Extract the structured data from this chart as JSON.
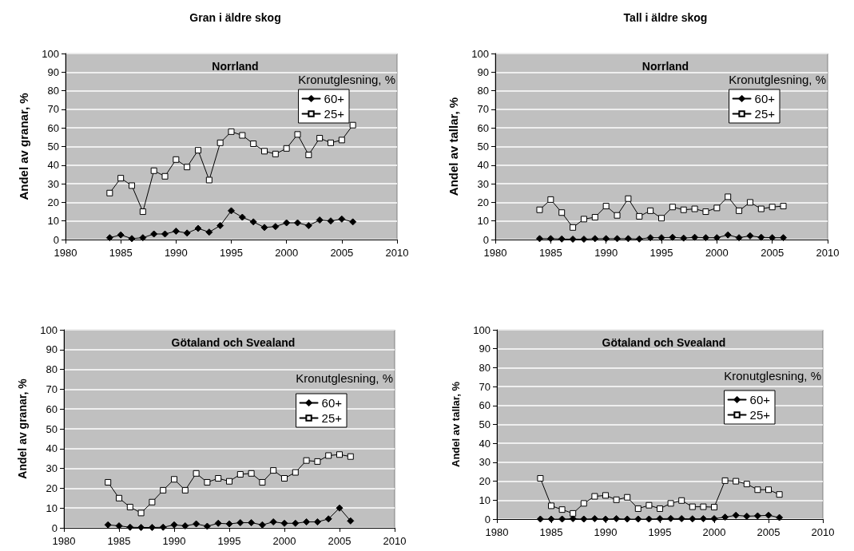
{
  "chart_data": [
    {
      "type": "line",
      "title": "Gran i äldre skog",
      "subtitle": "Norrland",
      "ylabel": "Andel av granar, %",
      "legend_title": "Kronutglesning, %",
      "legend": "top right",
      "grid": "y",
      "xlim": [
        1980,
        2010
      ],
      "xticks": [
        1980,
        1985,
        1990,
        1995,
        2000,
        2005,
        2010
      ],
      "ylim": [
        0,
        100
      ],
      "yticks": [
        0,
        10,
        20,
        30,
        40,
        50,
        60,
        70,
        80,
        90,
        100
      ],
      "x": [
        1984,
        1985,
        1986,
        1987,
        1988,
        1989,
        1990,
        1991,
        1992,
        1993,
        1994,
        1995,
        1996,
        1997,
        1998,
        1999,
        2000,
        2001,
        2002,
        2003,
        2004,
        2005,
        2006
      ],
      "series": [
        {
          "name": "60+",
          "color": "#000000",
          "marker": "diamond",
          "values": [
            1,
            2.5,
            0.5,
            1,
            3,
            3,
            4.5,
            3.5,
            6,
            4,
            7.5,
            15.5,
            12,
            9.5,
            6.5,
            7,
            9,
            9,
            7.5,
            10.5,
            10,
            11,
            9.5
          ]
        },
        {
          "name": "25+",
          "color": "#000000",
          "marker": "square",
          "values": [
            25,
            33,
            29,
            15,
            37,
            34,
            43,
            39,
            48,
            32,
            52,
            58,
            56,
            51.5,
            47.5,
            46,
            49,
            56.5,
            45.5,
            54.5,
            52,
            53.5,
            61.5
          ]
        }
      ]
    },
    {
      "type": "line",
      "title": "Tall i äldre skog",
      "subtitle": "Norrland",
      "ylabel": "Andel av tallar, %",
      "legend_title": "Kronutglesning, %",
      "legend": "top right",
      "grid": "y",
      "xlim": [
        1980,
        2010
      ],
      "xticks": [
        1980,
        1985,
        1990,
        1995,
        2000,
        2005,
        2010
      ],
      "ylim": [
        0,
        100
      ],
      "yticks": [
        0,
        10,
        20,
        30,
        40,
        50,
        60,
        70,
        80,
        90,
        100
      ],
      "x": [
        1984,
        1985,
        1986,
        1987,
        1988,
        1989,
        1990,
        1991,
        1992,
        1993,
        1994,
        1995,
        1996,
        1997,
        1998,
        1999,
        2000,
        2001,
        2002,
        2003,
        2004,
        2005,
        2006
      ],
      "series": [
        {
          "name": "60+",
          "color": "#000000",
          "marker": "diamond",
          "values": [
            0.5,
            0.5,
            0.3,
            0.2,
            0.2,
            0.5,
            0.5,
            0.5,
            0.5,
            0.3,
            1,
            1,
            1.2,
            0.8,
            1.2,
            1,
            1,
            2.5,
            1,
            2,
            1.2,
            1,
            1
          ]
        },
        {
          "name": "25+",
          "color": "#000000",
          "marker": "square",
          "values": [
            16,
            21.5,
            14.5,
            6.5,
            11,
            12,
            18,
            13,
            22,
            12.5,
            15.5,
            11.5,
            17.5,
            16,
            16.5,
            15,
            17,
            23,
            15.5,
            20,
            16.5,
            17.5,
            18
          ]
        }
      ]
    },
    {
      "type": "line",
      "title": "Götaland och Svealand",
      "ylabel": "Andel av granar, %",
      "legend_title": "Kronutglesning, %",
      "legend": "top right",
      "grid": "y",
      "xlim": [
        1980,
        2010
      ],
      "xticks": [
        1980,
        1985,
        1990,
        1995,
        2000,
        2005,
        2010
      ],
      "ylim": [
        0,
        100
      ],
      "yticks": [
        0,
        10,
        20,
        30,
        40,
        50,
        60,
        70,
        80,
        90,
        100
      ],
      "x": [
        1984,
        1985,
        1986,
        1987,
        1988,
        1989,
        1990,
        1991,
        1992,
        1993,
        1994,
        1995,
        1996,
        1997,
        1998,
        1999,
        2000,
        2001,
        2002,
        2003,
        2004,
        2005,
        2006
      ],
      "series": [
        {
          "name": "60+",
          "color": "#000000",
          "marker": "diamond",
          "values": [
            1.5,
            1,
            0.3,
            0.2,
            0.2,
            0.3,
            1.5,
            1,
            2,
            0.8,
            2.3,
            2,
            2.6,
            2.6,
            1.5,
            3,
            2.3,
            2.3,
            3,
            3,
            4.5,
            10,
            3.5
          ]
        },
        {
          "name": "25+",
          "color": "#000000",
          "marker": "square",
          "values": [
            23,
            15,
            10.5,
            7.5,
            13,
            19,
            24.5,
            19,
            27.5,
            23,
            25,
            23.5,
            27,
            27.5,
            23,
            29,
            25,
            28,
            34,
            33.5,
            36.5,
            37,
            36
          ]
        }
      ]
    },
    {
      "type": "line",
      "title": "Götaland och Svealand",
      "ylabel": "Andel av tallar, %",
      "legend_title": "Kronutglesning, %",
      "legend": "top right",
      "grid": "y",
      "xlim": [
        1980,
        2010
      ],
      "xticks": [
        1980,
        1985,
        1990,
        1995,
        2000,
        2005,
        2010
      ],
      "ylim": [
        0,
        100
      ],
      "yticks": [
        0,
        10,
        20,
        30,
        40,
        50,
        60,
        70,
        80,
        90,
        100
      ],
      "x": [
        1984,
        1985,
        1986,
        1987,
        1988,
        1989,
        1990,
        1991,
        1992,
        1993,
        1994,
        1995,
        1996,
        1997,
        1998,
        1999,
        2000,
        2001,
        2002,
        2003,
        2004,
        2005,
        2006
      ],
      "series": [
        {
          "name": "60+",
          "color": "#000000",
          "marker": "diamond",
          "values": [
            0,
            0,
            0,
            0.2,
            0,
            0.2,
            0,
            0.2,
            0,
            0,
            0,
            0.2,
            0.3,
            0.2,
            0.1,
            0.2,
            0.2,
            1,
            2,
            1.5,
            1.7,
            2,
            0.8
          ]
        },
        {
          "name": "25+",
          "color": "#000000",
          "marker": "square",
          "values": [
            21.5,
            7,
            5,
            3,
            8.3,
            12,
            12.5,
            10.2,
            11.5,
            5.5,
            7.3,
            5.5,
            8.3,
            9.8,
            6.5,
            6.5,
            6.3,
            20.3,
            20,
            18.5,
            15.5,
            15.5,
            13
          ]
        }
      ]
    }
  ]
}
